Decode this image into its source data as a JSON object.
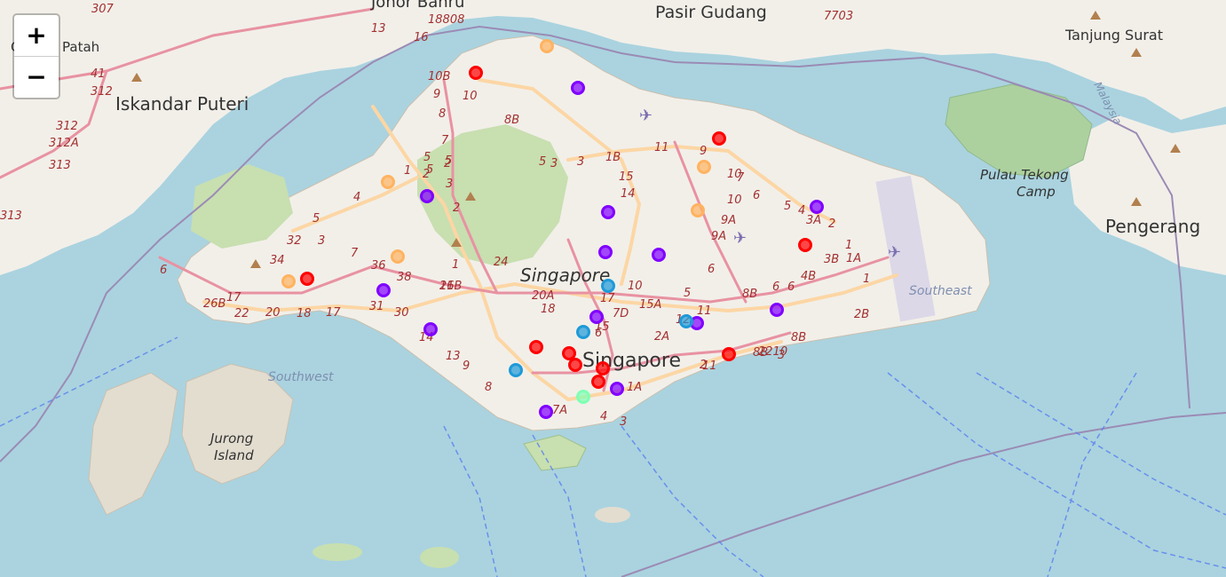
{
  "map": {
    "zoom_in_label": "+",
    "zoom_out_label": "−",
    "place_labels": {
      "johor_bahru": "Johor Bahru",
      "pasir_gudang": "Pasir Gudang",
      "tanjung_surat": "Tanjung Surat",
      "gelang_patah": "Gelang Patah",
      "iskandar_puteri": "Iskandar Puteri",
      "pulau_tekong": "Pulau Tekong",
      "camp": "Camp",
      "pengerang": "Pengerang",
      "singapore_island": "Singapore",
      "singapore_city": "Singapore",
      "southwest": "Southwest",
      "southeast": "Southeast",
      "jurong": "Jurong",
      "island": "Island",
      "malaysia": "Malaysia"
    },
    "road_numbers": [
      "307",
      "18808",
      "13",
      "16",
      "10B",
      "10",
      "8",
      "8B",
      "9",
      "7",
      "5",
      "5",
      "3",
      "3",
      "1B",
      "15",
      "14",
      "11",
      "9",
      "10",
      "7",
      "6",
      "5",
      "4",
      "3A",
      "2",
      "1",
      "3B",
      "1A",
      "10",
      "9A",
      "9A",
      "6",
      "8B",
      "6",
      "6",
      "4B",
      "3",
      "2B",
      "1",
      "8B",
      "11",
      "11",
      "12",
      "2A",
      "6",
      "5",
      "7D",
      "15A",
      "17",
      "10",
      "20A",
      "18",
      "24",
      "26B",
      "1",
      "2",
      "5",
      "2",
      "1",
      "5",
      "3",
      "2",
      "4",
      "5",
      "7",
      "3",
      "32",
      "34",
      "36",
      "38",
      "31",
      "30",
      "14",
      "13",
      "9",
      "8",
      "7A",
      "4",
      "3",
      "1A",
      "2",
      "15",
      "11",
      "6",
      "26B",
      "22",
      "20",
      "18",
      "17",
      "17",
      "41",
      "312",
      "312",
      "312A",
      "313",
      "313",
      "7703",
      "2210",
      "8B",
      "6"
    ],
    "marker_colors": {
      "cluster_0": "#ff0000",
      "cluster_1": "#8000ff",
      "cluster_2": "#1e9ad8",
      "cluster_3": "#80ffb4",
      "cluster_4": "#ffb360"
    },
    "markers": [
      {
        "cluster": "cluster_0"
      },
      {
        "cluster": "cluster_4"
      },
      {
        "cluster": "cluster_1"
      },
      {
        "cluster": "cluster_0"
      },
      {
        "cluster": "cluster_4"
      },
      {
        "cluster": "cluster_4"
      },
      {
        "cluster": "cluster_1"
      },
      {
        "cluster": "cluster_1"
      },
      {
        "cluster": "cluster_1"
      },
      {
        "cluster": "cluster_4"
      },
      {
        "cluster": "cluster_1"
      },
      {
        "cluster": "cluster_0"
      },
      {
        "cluster": "cluster_4"
      },
      {
        "cluster": "cluster_1"
      },
      {
        "cluster": "cluster_1"
      },
      {
        "cluster": "cluster_4"
      },
      {
        "cluster": "cluster_0"
      },
      {
        "cluster": "cluster_1"
      },
      {
        "cluster": "cluster_2"
      },
      {
        "cluster": "cluster_1"
      },
      {
        "cluster": "cluster_1"
      },
      {
        "cluster": "cluster_2"
      },
      {
        "cluster": "cluster_2"
      },
      {
        "cluster": "cluster_1"
      },
      {
        "cluster": "cluster_1"
      },
      {
        "cluster": "cluster_0"
      },
      {
        "cluster": "cluster_0"
      },
      {
        "cluster": "cluster_0"
      },
      {
        "cluster": "cluster_0"
      },
      {
        "cluster": "cluster_0"
      },
      {
        "cluster": "cluster_0"
      },
      {
        "cluster": "cluster_2"
      },
      {
        "cluster": "cluster_1"
      },
      {
        "cluster": "cluster_3"
      },
      {
        "cluster": "cluster_1"
      }
    ]
  }
}
